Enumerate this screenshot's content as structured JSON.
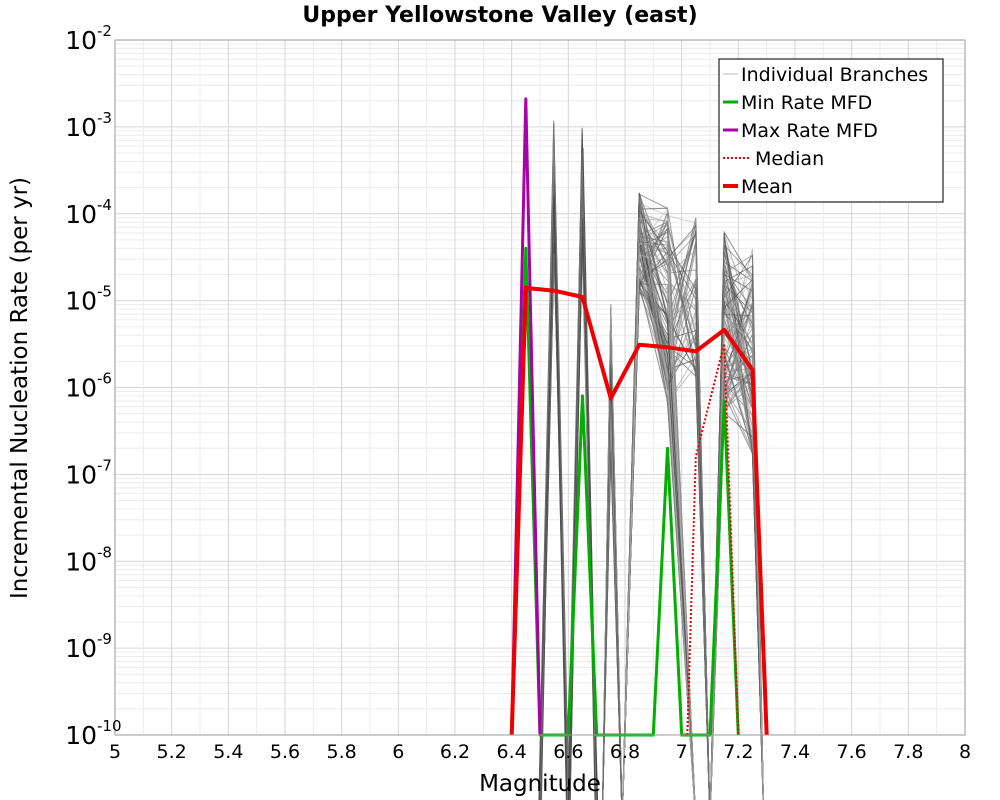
{
  "chart_data": {
    "type": "line",
    "title": "Upper Yellowstone Valley (east)",
    "xlabel": "Magnitude",
    "ylabel": "Incremental Nucleation Rate (per yr)",
    "xlim": [
      5,
      8
    ],
    "ylim_exponents": [
      -10,
      -2
    ],
    "y_scale": "log",
    "grid": true,
    "legend_position": "top-right",
    "x_ticks": [
      "5",
      "5.2",
      "5.4",
      "5.6",
      "5.8",
      "6",
      "6.2",
      "6.4",
      "6.6",
      "6.8",
      "7",
      "7.2",
      "7.4",
      "7.6",
      "7.8",
      "8"
    ],
    "y_ticks": [
      {
        "base": "10",
        "exp": "-10"
      },
      {
        "base": "10",
        "exp": "-9"
      },
      {
        "base": "10",
        "exp": "-8"
      },
      {
        "base": "10",
        "exp": "-7"
      },
      {
        "base": "10",
        "exp": "-6"
      },
      {
        "base": "10",
        "exp": "-5"
      },
      {
        "base": "10",
        "exp": "-4"
      },
      {
        "base": "10",
        "exp": "-3"
      },
      {
        "base": "10",
        "exp": "-2"
      }
    ],
    "legend": [
      {
        "label": "Individual Branches",
        "color": "#bbbbbb",
        "style": "thin"
      },
      {
        "label": "Min Rate MFD",
        "color": "#00b000",
        "style": "solid"
      },
      {
        "label": "Max Rate MFD",
        "color": "#aa00aa",
        "style": "solid"
      },
      {
        "label": "Median",
        "color": "#ee0000",
        "style": "dotted"
      },
      {
        "label": "Mean",
        "color": "#ee0000",
        "style": "thick"
      }
    ],
    "series": [
      {
        "name": "Mean",
        "color": "#ee0000",
        "x": [
          6.4,
          6.45,
          6.55,
          6.65,
          6.75,
          6.85,
          6.95,
          7.05,
          7.15,
          7.25,
          7.3
        ],
        "y": [
          1e-10,
          1.4e-05,
          1.3e-05,
          1.1e-05,
          7.5e-07,
          3.1e-06,
          2.9e-06,
          2.6e-06,
          4.6e-06,
          1.6e-06,
          1e-10
        ]
      },
      {
        "name": "Median",
        "color": "#ee0000",
        "x": [
          7.02,
          7.05,
          7.15,
          7.2
        ],
        "y": [
          1e-10,
          1.6e-07,
          3.2e-06,
          1e-10
        ]
      },
      {
        "name": "Min Rate MFD",
        "color": "#00b000",
        "x": [
          6.4,
          6.45,
          6.5,
          6.6,
          6.65,
          6.7,
          6.9,
          6.95,
          7.0,
          7.1,
          7.15,
          7.2
        ],
        "y": [
          1e-10,
          4e-05,
          1e-10,
          1e-10,
          8e-07,
          1e-10,
          1e-10,
          2e-07,
          1e-10,
          1e-10,
          7e-07,
          1e-10
        ]
      },
      {
        "name": "Max Rate MFD",
        "color": "#aa00aa",
        "x": [
          6.4,
          6.45,
          6.5
        ],
        "y": [
          1e-10,
          0.0021,
          1e-10
        ]
      }
    ]
  }
}
